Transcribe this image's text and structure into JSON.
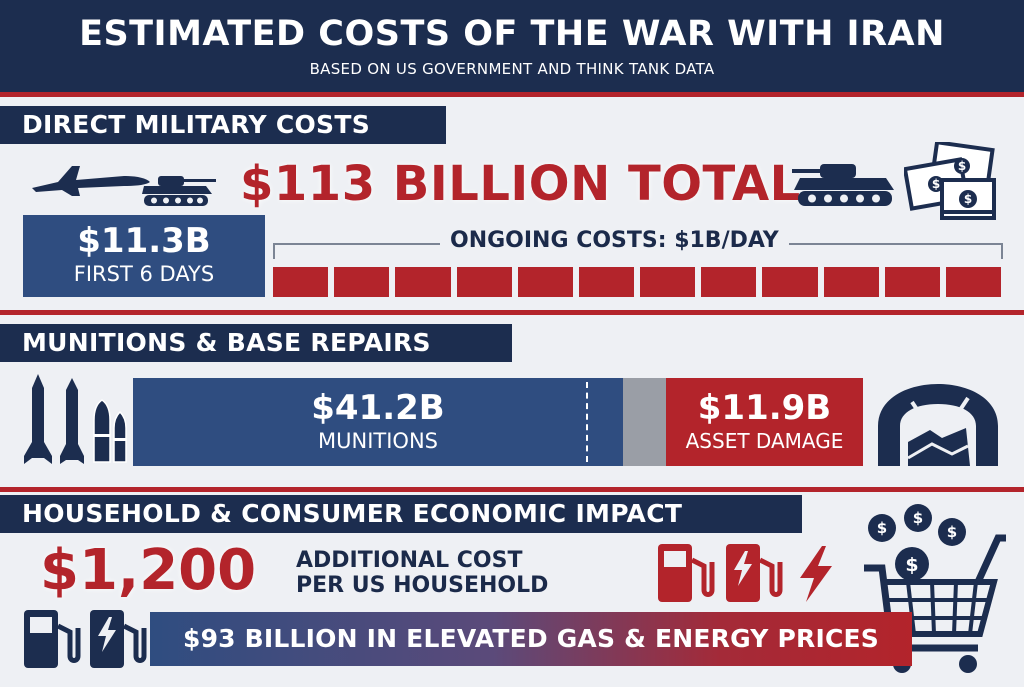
{
  "header": {
    "title": "ESTIMATED COSTS OF THE WAR WITH IRAN",
    "subtitle": "BASED ON US GOVERNMENT AND THINK TANK DATA"
  },
  "direct_military": {
    "heading": "DIRECT MILITARY COSTS",
    "total": "$113 BILLION TOTAL",
    "first_value": "$11.3B",
    "first_label": "FIRST 6 DAYS",
    "ongoing": "ONGOING COSTS: $1B/DAY",
    "ongoing_segments": 12
  },
  "munitions": {
    "heading": "MUNITIONS & BASE REPAIRS",
    "munitions_value": "$41.2B",
    "munitions_label": "MUNITIONS",
    "damage_value": "$11.9B",
    "damage_label": "ASSET DAMAGE"
  },
  "household": {
    "heading": "HOUSEHOLD & CONSUMER ECONOMIC IMPACT",
    "amount": "$1,200",
    "amount_line1": "ADDITIONAL COST",
    "amount_line2": "PER US HOUSEHOLD",
    "gas_banner": "$93 BILLION IN ELEVATED GAS & ENERGY PRICES"
  },
  "colors": {
    "navy": "#1c2d4f",
    "blue": "#2f4d80",
    "red": "#b3242b",
    "gray": "#9a9ea6"
  },
  "icons": [
    "fighter-jet-icon",
    "tank-icon",
    "money-stack-icon",
    "missile-icon",
    "damaged-hangar-icon",
    "fuel-pump-icon",
    "lightning-icon",
    "shopping-cart-icon",
    "dollar-coin-icon"
  ]
}
